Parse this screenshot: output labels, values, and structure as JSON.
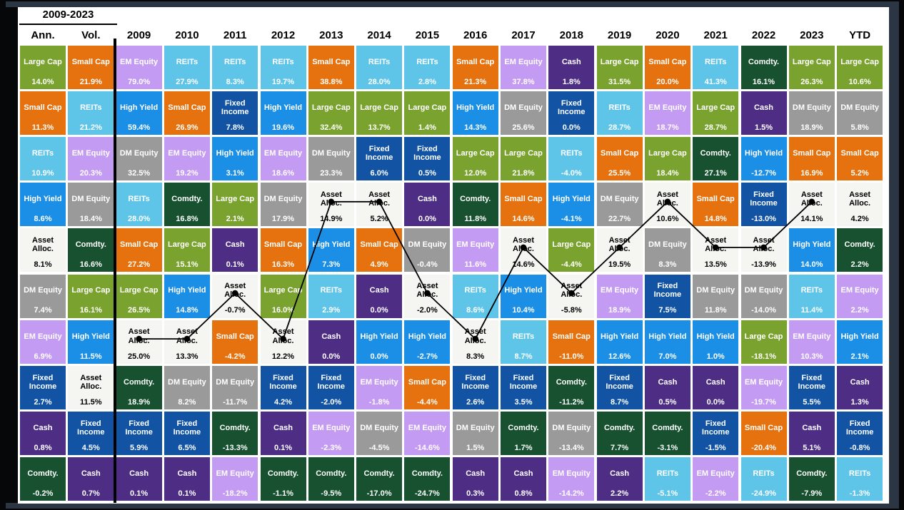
{
  "title_period": "2009-2023",
  "asset_classes": {
    "large-cap": {
      "label": "Large Cap",
      "color": "#7AA22E",
      "text_color": "#FFFFFF"
    },
    "small-cap": {
      "label": "Small Cap",
      "color": "#E5720E",
      "text_color": "#FFFFFF"
    },
    "reits": {
      "label": "REITs",
      "color": "#5EC5E8",
      "text_color": "#FFFFFF"
    },
    "em-equity": {
      "label": "EM Equity",
      "color": "#C49BF2",
      "text_color": "#FFFFFF"
    },
    "dm-equity": {
      "label": "DM Equity",
      "color": "#9A9A9A",
      "text_color": "#FFFFFF"
    },
    "high-yield": {
      "label": "High Yield",
      "color": "#1B8FE6",
      "text_color": "#FFFFFF"
    },
    "fixed-income": {
      "label": "Fixed Income",
      "color": "#1253A4",
      "text_color": "#FFFFFF"
    },
    "cash": {
      "label": "Cash",
      "color": "#4D2E84",
      "text_color": "#FFFFFF"
    },
    "comdty": {
      "label": "Comdty.",
      "color": "#17512F",
      "text_color": "#FFFFFF"
    },
    "asset-alloc": {
      "label": "Asset Alloc.",
      "color": "#F5F5F2",
      "text_color": "#000000"
    }
  },
  "chart_data": {
    "type": "table",
    "description": "Asset class returns quilt: annual total returns ranked best-to-worst per year, with 2009-2023 annualized return (Ann.) and volatility (Vol.) columns and YTD column; black dotted line traces the Asset Alloc. portfolio rank each year.",
    "columns": [
      "Ann.",
      "Vol.",
      "2009",
      "2010",
      "2011",
      "2012",
      "2013",
      "2014",
      "2015",
      "2016",
      "2017",
      "2018",
      "2019",
      "2020",
      "2021",
      "2022",
      "2023",
      "YTD"
    ],
    "rows": [
      [
        [
          "large-cap",
          "14.0%"
        ],
        [
          "small-cap",
          "21.9%"
        ],
        [
          "em-equity",
          "79.0%"
        ],
        [
          "reits",
          "27.9%"
        ],
        [
          "reits",
          "8.3%"
        ],
        [
          "reits",
          "19.7%"
        ],
        [
          "small-cap",
          "38.8%"
        ],
        [
          "reits",
          "28.0%"
        ],
        [
          "reits",
          "2.8%"
        ],
        [
          "small-cap",
          "21.3%"
        ],
        [
          "em-equity",
          "37.8%"
        ],
        [
          "cash",
          "1.8%"
        ],
        [
          "large-cap",
          "31.5%"
        ],
        [
          "small-cap",
          "20.0%"
        ],
        [
          "reits",
          "41.3%"
        ],
        [
          "comdty",
          "16.1%"
        ],
        [
          "large-cap",
          "26.3%"
        ],
        [
          "large-cap",
          "10.6%"
        ]
      ],
      [
        [
          "small-cap",
          "11.3%"
        ],
        [
          "reits",
          "21.2%"
        ],
        [
          "high-yield",
          "59.4%"
        ],
        [
          "small-cap",
          "26.9%"
        ],
        [
          "fixed-income",
          "7.8%"
        ],
        [
          "high-yield",
          "19.6%"
        ],
        [
          "large-cap",
          "32.4%"
        ],
        [
          "large-cap",
          "13.7%"
        ],
        [
          "large-cap",
          "1.4%"
        ],
        [
          "high-yield",
          "14.3%"
        ],
        [
          "dm-equity",
          "25.6%"
        ],
        [
          "fixed-income",
          "0.0%"
        ],
        [
          "reits",
          "28.7%"
        ],
        [
          "em-equity",
          "18.7%"
        ],
        [
          "large-cap",
          "28.7%"
        ],
        [
          "cash",
          "1.5%"
        ],
        [
          "dm-equity",
          "18.9%"
        ],
        [
          "dm-equity",
          "5.8%"
        ]
      ],
      [
        [
          "reits",
          "10.9%"
        ],
        [
          "em-equity",
          "20.3%"
        ],
        [
          "dm-equity",
          "32.5%"
        ],
        [
          "em-equity",
          "19.2%"
        ],
        [
          "high-yield",
          "3.1%"
        ],
        [
          "em-equity",
          "18.6%"
        ],
        [
          "dm-equity",
          "23.3%"
        ],
        [
          "fixed-income",
          "6.0%"
        ],
        [
          "fixed-income",
          "0.5%"
        ],
        [
          "large-cap",
          "12.0%"
        ],
        [
          "large-cap",
          "21.8%"
        ],
        [
          "reits",
          "-4.0%"
        ],
        [
          "small-cap",
          "25.5%"
        ],
        [
          "large-cap",
          "18.4%"
        ],
        [
          "comdty",
          "27.1%"
        ],
        [
          "high-yield",
          "-12.7%"
        ],
        [
          "small-cap",
          "16.9%"
        ],
        [
          "small-cap",
          "5.2%"
        ]
      ],
      [
        [
          "high-yield",
          "8.6%"
        ],
        [
          "dm-equity",
          "18.4%"
        ],
        [
          "reits",
          "28.0%"
        ],
        [
          "comdty",
          "16.8%"
        ],
        [
          "large-cap",
          "2.1%"
        ],
        [
          "dm-equity",
          "17.9%"
        ],
        [
          "asset-alloc",
          "14.9%"
        ],
        [
          "asset-alloc",
          "5.2%"
        ],
        [
          "cash",
          "0.0%"
        ],
        [
          "comdty",
          "11.8%"
        ],
        [
          "small-cap",
          "14.6%"
        ],
        [
          "high-yield",
          "-4.1%"
        ],
        [
          "dm-equity",
          "22.7%"
        ],
        [
          "asset-alloc",
          "10.6%"
        ],
        [
          "small-cap",
          "14.8%"
        ],
        [
          "fixed-income",
          "-13.0%"
        ],
        [
          "asset-alloc",
          "14.1%"
        ],
        [
          "asset-alloc",
          "4.2%"
        ]
      ],
      [
        [
          "asset-alloc",
          "8.1%"
        ],
        [
          "comdty",
          "16.6%"
        ],
        [
          "small-cap",
          "27.2%"
        ],
        [
          "large-cap",
          "15.1%"
        ],
        [
          "cash",
          "0.1%"
        ],
        [
          "small-cap",
          "16.3%"
        ],
        [
          "high-yield",
          "7.3%"
        ],
        [
          "small-cap",
          "4.9%"
        ],
        [
          "dm-equity",
          "-0.4%"
        ],
        [
          "em-equity",
          "11.6%"
        ],
        [
          "asset-alloc",
          "14.6%"
        ],
        [
          "large-cap",
          "-4.4%"
        ],
        [
          "asset-alloc",
          "19.5%"
        ],
        [
          "dm-equity",
          "8.3%"
        ],
        [
          "asset-alloc",
          "13.5%"
        ],
        [
          "asset-alloc",
          "-13.9%"
        ],
        [
          "high-yield",
          "14.0%"
        ],
        [
          "comdty",
          "2.2%"
        ]
      ],
      [
        [
          "dm-equity",
          "7.4%"
        ],
        [
          "large-cap",
          "16.1%"
        ],
        [
          "large-cap",
          "26.5%"
        ],
        [
          "high-yield",
          "14.8%"
        ],
        [
          "asset-alloc",
          "-0.7%"
        ],
        [
          "large-cap",
          "16.0%"
        ],
        [
          "reits",
          "2.9%"
        ],
        [
          "cash",
          "0.0%"
        ],
        [
          "asset-alloc",
          "-2.0%"
        ],
        [
          "reits",
          "8.6%"
        ],
        [
          "high-yield",
          "10.4%"
        ],
        [
          "asset-alloc",
          "-5.8%"
        ],
        [
          "em-equity",
          "18.9%"
        ],
        [
          "fixed-income",
          "7.5%"
        ],
        [
          "dm-equity",
          "11.8%"
        ],
        [
          "dm-equity",
          "-14.0%"
        ],
        [
          "reits",
          "11.4%"
        ],
        [
          "em-equity",
          "2.2%"
        ]
      ],
      [
        [
          "em-equity",
          "6.9%"
        ],
        [
          "high-yield",
          "11.5%"
        ],
        [
          "asset-alloc",
          "25.0%"
        ],
        [
          "asset-alloc",
          "13.3%"
        ],
        [
          "small-cap",
          "-4.2%"
        ],
        [
          "asset-alloc",
          "12.2%"
        ],
        [
          "cash",
          "0.0%"
        ],
        [
          "high-yield",
          "0.0%"
        ],
        [
          "high-yield",
          "-2.7%"
        ],
        [
          "asset-alloc",
          "8.3%"
        ],
        [
          "reits",
          "8.7%"
        ],
        [
          "small-cap",
          "-11.0%"
        ],
        [
          "high-yield",
          "12.6%"
        ],
        [
          "high-yield",
          "7.0%"
        ],
        [
          "high-yield",
          "1.0%"
        ],
        [
          "large-cap",
          "-18.1%"
        ],
        [
          "em-equity",
          "10.3%"
        ],
        [
          "high-yield",
          "2.1%"
        ]
      ],
      [
        [
          "fixed-income",
          "2.7%"
        ],
        [
          "asset-alloc",
          "11.5%"
        ],
        [
          "comdty",
          "18.9%"
        ],
        [
          "dm-equity",
          "8.2%"
        ],
        [
          "dm-equity",
          "-11.7%"
        ],
        [
          "fixed-income",
          "4.2%"
        ],
        [
          "fixed-income",
          "-2.0%"
        ],
        [
          "em-equity",
          "-1.8%"
        ],
        [
          "small-cap",
          "-4.4%"
        ],
        [
          "fixed-income",
          "2.6%"
        ],
        [
          "fixed-income",
          "3.5%"
        ],
        [
          "comdty",
          "-11.2%"
        ],
        [
          "fixed-income",
          "8.7%"
        ],
        [
          "cash",
          "0.5%"
        ],
        [
          "cash",
          "0.0%"
        ],
        [
          "em-equity",
          "-19.7%"
        ],
        [
          "fixed-income",
          "5.5%"
        ],
        [
          "cash",
          "1.3%"
        ]
      ],
      [
        [
          "cash",
          "0.8%"
        ],
        [
          "fixed-income",
          "4.5%"
        ],
        [
          "fixed-income",
          "5.9%"
        ],
        [
          "fixed-income",
          "6.5%"
        ],
        [
          "comdty",
          "-13.3%"
        ],
        [
          "cash",
          "0.1%"
        ],
        [
          "em-equity",
          "-2.3%"
        ],
        [
          "dm-equity",
          "-4.5%"
        ],
        [
          "em-equity",
          "-14.6%"
        ],
        [
          "dm-equity",
          "1.5%"
        ],
        [
          "comdty",
          "1.7%"
        ],
        [
          "dm-equity",
          "-13.4%"
        ],
        [
          "comdty",
          "7.7%"
        ],
        [
          "comdty",
          "-3.1%"
        ],
        [
          "fixed-income",
          "-1.5%"
        ],
        [
          "small-cap",
          "-20.4%"
        ],
        [
          "cash",
          "5.1%"
        ],
        [
          "fixed-income",
          "-0.8%"
        ]
      ],
      [
        [
          "comdty",
          "-0.2%"
        ],
        [
          "cash",
          "0.7%"
        ],
        [
          "cash",
          "0.1%"
        ],
        [
          "cash",
          "0.1%"
        ],
        [
          "em-equity",
          "-18.2%"
        ],
        [
          "comdty",
          "-1.1%"
        ],
        [
          "comdty",
          "-9.5%"
        ],
        [
          "comdty",
          "-17.0%"
        ],
        [
          "comdty",
          "-24.7%"
        ],
        [
          "cash",
          "0.3%"
        ],
        [
          "cash",
          "0.8%"
        ],
        [
          "em-equity",
          "-14.2%"
        ],
        [
          "cash",
          "2.2%"
        ],
        [
          "reits",
          "-5.1%"
        ],
        [
          "em-equity",
          "-2.2%"
        ],
        [
          "reits",
          "-24.9%"
        ],
        [
          "comdty",
          "-7.9%"
        ],
        [
          "reits",
          "-1.3%"
        ]
      ]
    ],
    "line_overlay": {
      "series": "Asset Alloc.",
      "line_color": "#000000",
      "years": [
        "2009",
        "2010",
        "2011",
        "2012",
        "2013",
        "2014",
        "2015",
        "2016",
        "2017",
        "2018",
        "2019",
        "2020",
        "2021",
        "2022",
        "2023"
      ],
      "row_position_by_year": [
        7,
        7,
        6,
        7,
        4,
        4,
        6,
        7,
        5,
        6,
        5,
        4,
        5,
        5,
        4
      ],
      "values_by_year": [
        "25.0%",
        "13.3%",
        "-0.7%",
        "12.2%",
        "14.9%",
        "5.2%",
        "-2.0%",
        "8.3%",
        "14.6%",
        "-5.8%",
        "19.5%",
        "10.6%",
        "13.5%",
        "-13.9%",
        "14.1%"
      ]
    }
  }
}
